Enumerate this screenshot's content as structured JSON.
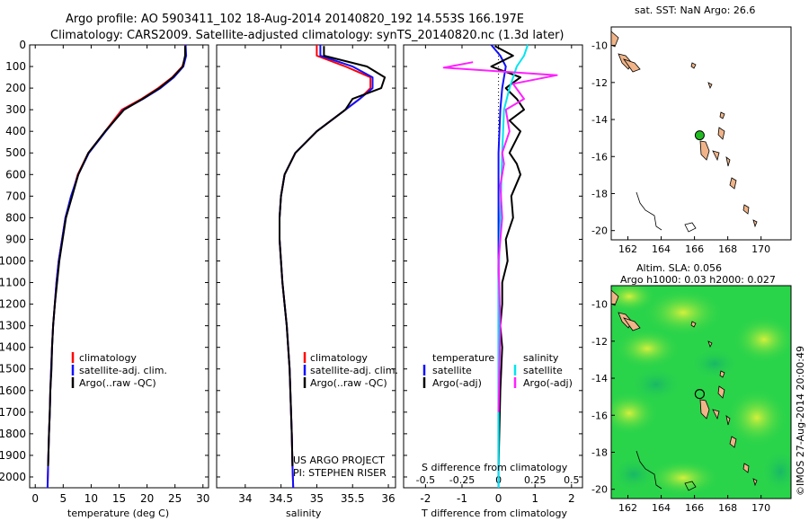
{
  "header": {
    "line1": "Argo profile: AO 5903411_102 18-Aug-2014 20140820_192 14.553S 166.197E",
    "line2": "Climatology: CARS2009. Satellite-adjusted climatology: synTS_20140820.nc (1.3d later)"
  },
  "colors": {
    "climatology": "#ff0000",
    "satellite": "#1010ff",
    "argo": "#000000",
    "salinity_sat": "#00e5ee",
    "salinity_argo": "#ff20ff",
    "land": "#f0b488",
    "argo_marker": "#22bb22"
  },
  "chart_data": [
    {
      "type": "line",
      "id": "temperature",
      "xlabel": "temperature (deg C)",
      "xlim": [
        -1,
        31
      ],
      "xticks": [
        0,
        5,
        10,
        15,
        20,
        25,
        30
      ],
      "ylim": [
        2050,
        0
      ],
      "yticks": [
        0,
        100,
        200,
        300,
        400,
        500,
        600,
        700,
        800,
        900,
        1000,
        1100,
        1200,
        1300,
        1400,
        1500,
        1600,
        1700,
        1800,
        1900,
        2000
      ],
      "legend": [
        "climatology",
        "satellite-adj. clim.",
        "Argo(..raw -QC)"
      ],
      "series": [
        {
          "name": "climatology",
          "color": "#ff0000",
          "x": [
            26.8,
            26.9,
            26.3,
            24.5,
            22,
            19,
            15.5,
            12.5,
            9.5,
            7.6,
            6.5,
            5.4,
            4.8,
            4.2,
            3.8,
            3.5,
            3.2,
            3.0,
            2.85,
            2.7,
            2.6,
            2.45,
            2.3,
            2.2
          ],
          "y": [
            0,
            50,
            100,
            150,
            200,
            250,
            300,
            400,
            500,
            600,
            700,
            800,
            900,
            1000,
            1100,
            1200,
            1300,
            1400,
            1500,
            1600,
            1700,
            1800,
            1950,
            2050
          ]
        },
        {
          "name": "satellite-adj. clim.",
          "color": "#1010ff",
          "x": [
            26.9,
            27.0,
            26.5,
            24.8,
            22.4,
            19.3,
            15.8,
            12.6,
            9.6,
            7.7,
            6.4,
            5.4,
            4.8,
            4.2,
            3.8,
            3.5,
            3.2,
            3.0,
            2.85,
            2.7,
            2.6,
            2.45,
            2.3,
            2.2
          ],
          "y": [
            0,
            50,
            100,
            150,
            200,
            250,
            300,
            400,
            500,
            600,
            700,
            800,
            900,
            1000,
            1100,
            1200,
            1300,
            1400,
            1500,
            1600,
            1700,
            1800,
            1950,
            2050
          ]
        },
        {
          "name": "Argo(..raw -QC)",
          "color": "#000000",
          "x": [
            26.8,
            26.8,
            26.4,
            24.6,
            22.2,
            19.2,
            15.9,
            12.5,
            9.5,
            7.7,
            6.6,
            5.5,
            4.9,
            4.3,
            3.9,
            3.5,
            3.2,
            3.0,
            2.9,
            2.7,
            2.6,
            2.45,
            2.3
          ],
          "y": [
            5,
            50,
            100,
            150,
            200,
            250,
            300,
            400,
            500,
            600,
            700,
            800,
            900,
            1000,
            1100,
            1200,
            1300,
            1400,
            1500,
            1600,
            1700,
            1800,
            1950
          ]
        }
      ]
    },
    {
      "type": "line",
      "id": "salinity",
      "xlabel": "salinity",
      "xlim": [
        33.6,
        36.1
      ],
      "xticks": [
        34,
        34.5,
        35,
        35.5,
        36
      ],
      "ylim": [
        2050,
        0
      ],
      "legend": [
        "climatology",
        "satellite-adj. clim.",
        "Argo(..raw -QC)"
      ],
      "annotation": [
        "US ARGO PROJECT",
        "PI: STEPHEN RISER"
      ],
      "series": [
        {
          "name": "climatology",
          "color": "#ff0000",
          "x": [
            35.0,
            35.0,
            35.4,
            35.75,
            35.75,
            35.6,
            35.4,
            35.0,
            34.7,
            34.55,
            34.5,
            34.48,
            34.48,
            34.5,
            34.52,
            34.55,
            34.58,
            34.6,
            34.62,
            34.63,
            34.64,
            34.65,
            34.66,
            34.67
          ],
          "y": [
            0,
            50,
            100,
            150,
            200,
            250,
            300,
            400,
            500,
            600,
            700,
            800,
            900,
            1000,
            1100,
            1200,
            1300,
            1400,
            1500,
            1600,
            1700,
            1800,
            1950,
            2050
          ]
        },
        {
          "name": "satellite-adj. clim.",
          "color": "#1010ff",
          "x": [
            35.05,
            35.05,
            35.5,
            35.78,
            35.78,
            35.6,
            35.4,
            35.0,
            34.7,
            34.55,
            34.5,
            34.48,
            34.48,
            34.5,
            34.52,
            34.55,
            34.58,
            34.6,
            34.62,
            34.63,
            34.64,
            34.65,
            34.66,
            34.67
          ],
          "y": [
            0,
            50,
            100,
            150,
            200,
            250,
            300,
            400,
            500,
            600,
            700,
            800,
            900,
            1000,
            1100,
            1200,
            1300,
            1400,
            1500,
            1600,
            1700,
            1800,
            1950,
            2050
          ]
        },
        {
          "name": "Argo(..raw -QC)",
          "color": "#000000",
          "x": [
            35.1,
            35.1,
            35.7,
            35.95,
            35.9,
            35.5,
            35.4,
            35.0,
            34.7,
            34.55,
            34.5,
            34.48,
            34.48,
            34.5,
            34.52,
            34.55,
            34.58,
            34.6,
            34.62,
            34.63,
            34.64,
            34.65,
            34.66
          ],
          "y": [
            5,
            50,
            100,
            150,
            200,
            250,
            300,
            400,
            500,
            600,
            700,
            800,
            900,
            1000,
            1100,
            1200,
            1300,
            1400,
            1500,
            1600,
            1700,
            1800,
            1950
          ]
        }
      ]
    },
    {
      "type": "line",
      "id": "difference",
      "xlabel": "T difference from climatology",
      "xlabel_top": "S difference from climatology",
      "xlim": [
        -2.6,
        2.3
      ],
      "xticks": [
        -2,
        -1,
        0,
        1,
        2
      ],
      "s_ticks": [
        -0.5,
        -0.25,
        0,
        0.25,
        0.5
      ],
      "ylim": [
        2050,
        0
      ],
      "legend_temperature_title": "temperature",
      "legend_salinity_title": "salinity",
      "legend_temperature": [
        "satellite",
        "Argo(-adj)"
      ],
      "legend_salinity": [
        "satellite",
        "Argo(-adj)"
      ],
      "series": [
        {
          "name": "T satellite",
          "color": "#1010ff",
          "x": [
            -0.2,
            0.05,
            0.2,
            0.1,
            0.05,
            0.0,
            0.0,
            0.0,
            0.0,
            0.0,
            0.0
          ],
          "y": [
            0,
            50,
            100,
            200,
            300,
            500,
            800,
            1100,
            1400,
            1700,
            2050
          ]
        },
        {
          "name": "T Argo(-adj)",
          "color": "#000000",
          "x": [
            -0.1,
            0.4,
            -0.2,
            0.6,
            0.2,
            0.5,
            0.7,
            0.3,
            0.6,
            0.3,
            0.5,
            0.6,
            0.35,
            0.4,
            0.2,
            0.25,
            0.1,
            0.1,
            0.05,
            0.1,
            0.05,
            0.0
          ],
          "y": [
            5,
            50,
            100,
            150,
            200,
            250,
            300,
            350,
            400,
            500,
            550,
            600,
            700,
            800,
            900,
            1000,
            1100,
            1200,
            1300,
            1400,
            1600,
            1950
          ]
        },
        {
          "name": "S satellite",
          "color": "#00e5ee",
          "x": [
            0.8,
            0.7,
            0.5,
            0.3,
            0.15,
            0.1,
            0.05,
            0.0,
            0.0,
            0.0,
            0.0
          ],
          "y": [
            0,
            50,
            100,
            200,
            300,
            500,
            800,
            1100,
            1400,
            1700,
            2050
          ]
        },
        {
          "name": "S Argo(-adj)",
          "color": "#ff20ff",
          "x": [
            -0.7,
            -1.5,
            1.6,
            0.4,
            0.7,
            0.2,
            0.3,
            0.1,
            0.15,
            0.05,
            0.1,
            0.0,
            0.05,
            0.0
          ],
          "y": [
            80,
            105,
            140,
            180,
            250,
            300,
            400,
            500,
            550,
            650,
            800,
            1000,
            1300,
            1700
          ]
        }
      ]
    },
    {
      "type": "scatter",
      "id": "sst-map",
      "title": "sat. SST: NaN Argo: 26.6",
      "xlim": [
        161,
        171.8
      ],
      "xticks": [
        162,
        164,
        166,
        168,
        170
      ],
      "ylim": [
        -20.5,
        -9
      ],
      "yticks": [
        -10,
        -12,
        -14,
        -16,
        -18,
        -20
      ],
      "argo_position": {
        "lon": 166.197,
        "lat": -14.553
      }
    },
    {
      "type": "heatmap",
      "id": "sla-map",
      "title_line1": "Altim. SLA: 0.056",
      "title_line2": "Argo h1000: 0.03 h2000: 0.027",
      "side_label": "©IMOS 27-Aug-2014 20:00:49",
      "xlim": [
        161,
        171.8
      ],
      "xticks": [
        162,
        164,
        166,
        168,
        170
      ],
      "ylim": [
        -20.5,
        -9
      ],
      "yticks": [
        -10,
        -12,
        -14,
        -16,
        -18,
        -20
      ],
      "argo_position": {
        "lon": 166.197,
        "lat": -14.553
      }
    }
  ]
}
